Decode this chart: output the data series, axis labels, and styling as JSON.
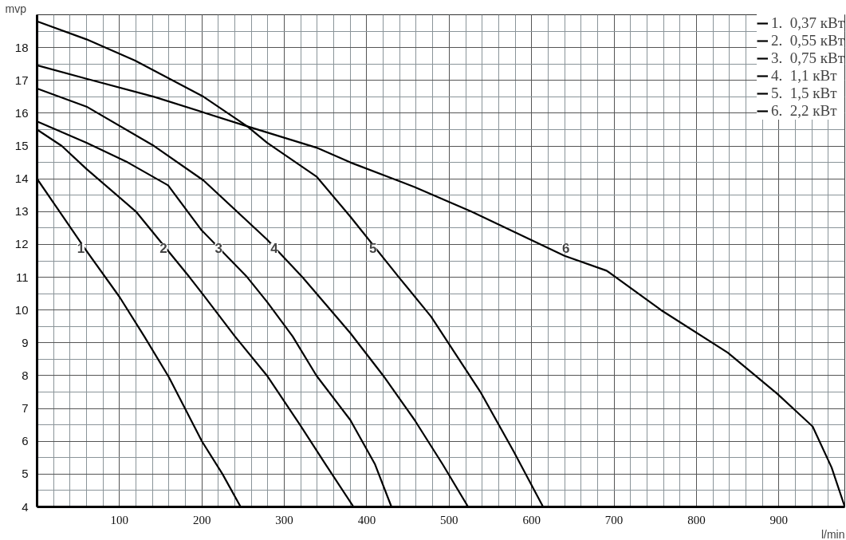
{
  "chart_data": {
    "type": "line",
    "xlabel": "l/min",
    "ylabel": "mvp",
    "xlim": [
      0,
      980
    ],
    "ylim": [
      4,
      19
    ],
    "xticks": [
      100,
      200,
      300,
      400,
      500,
      600,
      700,
      800,
      900
    ],
    "yticks": [
      4,
      5,
      6,
      7,
      8,
      9,
      10,
      11,
      12,
      13,
      14,
      15,
      16,
      17,
      18
    ],
    "grid": true,
    "legend": "top right",
    "marker": "none",
    "line_style": "solid",
    "series": [
      {
        "name": "1.  0,37 кВт",
        "color": "#000000",
        "x": [
          0,
          30,
          60,
          100,
          130,
          160,
          200,
          225,
          247
        ],
        "values": [
          14,
          12.9,
          11.8,
          10.4,
          9.2,
          7.95,
          6.0,
          5.0,
          4
        ]
      },
      {
        "name": "2.  0,55 кВт",
        "color": "#000000",
        "x": [
          0,
          30,
          60,
          120,
          185,
          202,
          240,
          279,
          319,
          350,
          384
        ],
        "values": [
          15.5,
          15.0,
          14.3,
          13.0,
          11.0,
          10.45,
          9.2,
          8.0,
          6.5,
          5.3,
          4
        ]
      },
      {
        "name": "3.  0,75 кВт",
        "color": "#000000",
        "x": [
          0,
          60,
          110,
          159,
          199,
          255,
          279,
          310,
          339,
          380,
          410,
          430
        ],
        "values": [
          15.75,
          15.1,
          14.5,
          13.8,
          12.45,
          11.0,
          10.25,
          9.2,
          8.0,
          6.65,
          5.3,
          4
        ]
      },
      {
        "name": "4.  1,1 кВт",
        "color": "#000000",
        "x": [
          0,
          60,
          142,
          202,
          279,
          322,
          380,
          420,
          458,
          492,
          523
        ],
        "values": [
          16.75,
          16.2,
          15.0,
          13.95,
          12.15,
          11.0,
          9.3,
          8.0,
          6.65,
          5.3,
          4
        ]
      },
      {
        "name": "5.  1,5 кВт",
        "color": "#000000",
        "x": [
          0,
          60,
          119,
          202,
          255,
          279,
          339,
          380,
          439,
          478,
          538,
          578,
          614
        ],
        "values": [
          18.8,
          18.25,
          17.6,
          16.5,
          15.6,
          15.1,
          14.07,
          12.85,
          11.0,
          9.8,
          7.5,
          5.7,
          4
        ]
      },
      {
        "name": "6.  2,2 кВт",
        "color": "#000000",
        "x": [
          0,
          60,
          142,
          255,
          339,
          380,
          458,
          527,
          640,
          691,
          757,
          838,
          898,
          941,
          964,
          980
        ],
        "values": [
          17.46,
          17.05,
          16.5,
          15.6,
          14.95,
          14.5,
          13.75,
          13.0,
          11.65,
          11.2,
          10.0,
          8.7,
          7.45,
          6.45,
          5.2,
          4
        ]
      }
    ],
    "annotations": [
      "1",
      "2",
      "3",
      "4",
      "5",
      "6"
    ]
  }
}
